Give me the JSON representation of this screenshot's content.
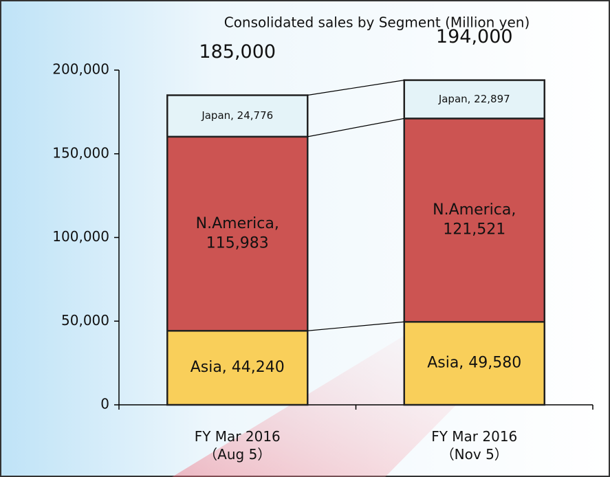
{
  "chart_data": {
    "type": "stacked_bar",
    "title": "Consolidated sales by Segment (Million yen)",
    "categories": [
      "FY Mar 2016\n（Aug 5）",
      "FY Mar 2016\n（Nov 5）"
    ],
    "series": [
      {
        "name": "Asia",
        "color": "#f9cf5a",
        "values": [
          44240,
          49580
        ],
        "value_labels": [
          "Asia, 44,240",
          "Asia, 49,580"
        ]
      },
      {
        "name": "N.America",
        "color": "#cc5452",
        "values": [
          115983,
          121521
        ],
        "value_labels": [
          "N.America,\n115,983",
          "N.America,\n121,521"
        ]
      },
      {
        "name": "Japan",
        "color": "#e4f3f8",
        "values": [
          24776,
          22897
        ],
        "value_labels": [
          "Japan, 24,776",
          "Japan, 22,897"
        ]
      }
    ],
    "totals": [
      185000,
      194000
    ],
    "total_labels": [
      "185,000",
      "194,000"
    ],
    "ylim": [
      0,
      200000
    ],
    "yticks": [
      0,
      {
        "value": 50000,
        "label": "50,000"
      },
      {
        "value": 100000,
        "label": "100,000"
      },
      {
        "value": 150000,
        "label": "150,000"
      },
      {
        "value": 200000,
        "label": "200,000"
      }
    ]
  }
}
